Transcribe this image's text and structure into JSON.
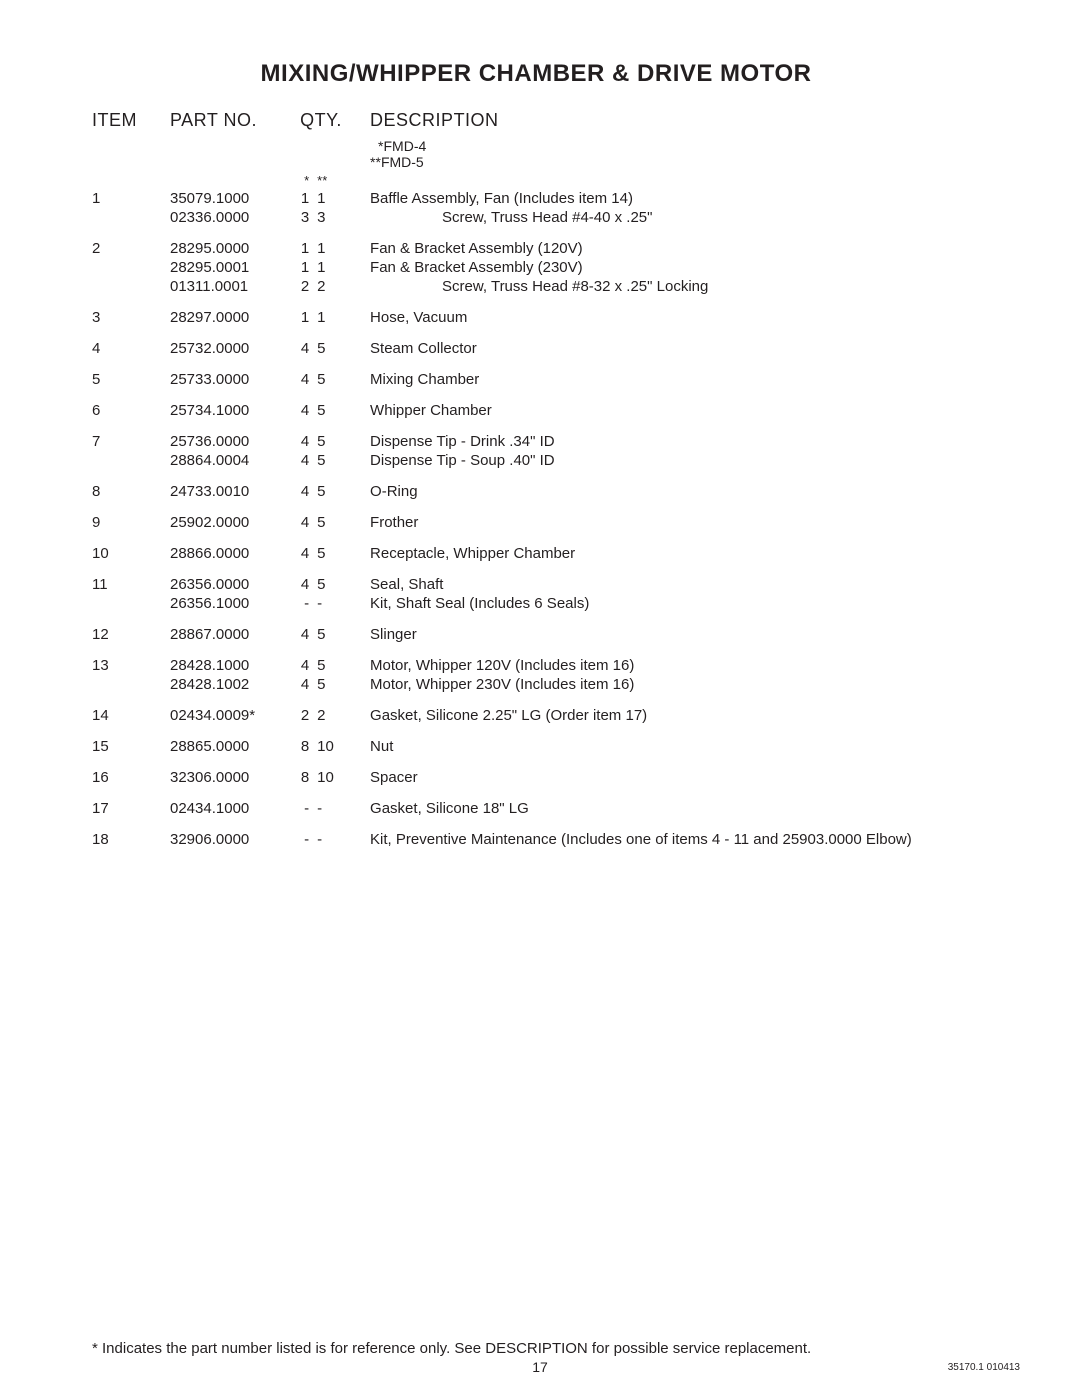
{
  "title": "MIXING/WHIPPER CHAMBER & DRIVE MOTOR",
  "headers": {
    "item": "ITEM",
    "part": "PART NO.",
    "qty": "QTY.",
    "desc": "DESCRIPTION"
  },
  "model_notes": {
    "line1": "*FMD-4",
    "line2": "**FMD-5"
  },
  "qty_stars": {
    "c1": "*",
    "c2": "**"
  },
  "rows": [
    {
      "item": "1",
      "sub": [
        {
          "part": "35079.1000",
          "q1": "1",
          "q2": "1",
          "desc": "Baffle Assembly, Fan (Includes item 14)"
        },
        {
          "part": "02336.0000",
          "q1": "3",
          "q2": "3",
          "desc": "Screw, Truss Head #4-40 x .25\"",
          "indent": true
        }
      ]
    },
    {
      "item": "2",
      "sub": [
        {
          "part": "28295.0000",
          "q1": "1",
          "q2": "1",
          "desc": "Fan & Bracket Assembly (120V)"
        },
        {
          "part": "28295.0001",
          "q1": "1",
          "q2": "1",
          "desc": "Fan & Bracket Assembly (230V)"
        },
        {
          "part": "01311.0001",
          "q1": "2",
          "q2": "2",
          "desc": "Screw, Truss Head #8-32 x .25\" Locking",
          "indent": true
        }
      ]
    },
    {
      "item": "3",
      "sub": [
        {
          "part": "28297.0000",
          "q1": "1",
          "q2": "1",
          "desc": "Hose, Vacuum"
        }
      ]
    },
    {
      "item": "4",
      "sub": [
        {
          "part": "25732.0000",
          "q1": "4",
          "q2": "5",
          "desc": "Steam Collector"
        }
      ]
    },
    {
      "item": "5",
      "sub": [
        {
          "part": "25733.0000",
          "q1": "4",
          "q2": "5",
          "desc": "Mixing Chamber"
        }
      ]
    },
    {
      "item": "6",
      "sub": [
        {
          "part": "25734.1000",
          "q1": "4",
          "q2": "5",
          "desc": "Whipper Chamber"
        }
      ]
    },
    {
      "item": "7",
      "sub": [
        {
          "part": "25736.0000",
          "q1": "4",
          "q2": "5",
          "desc": "Dispense Tip - Drink .34\" ID"
        },
        {
          "part": "28864.0004",
          "q1": "4",
          "q2": "5",
          "desc": "Dispense Tip - Soup .40\" ID"
        }
      ]
    },
    {
      "item": "8",
      "sub": [
        {
          "part": "24733.0010",
          "q1": "4",
          "q2": "5",
          "desc": "O-Ring"
        }
      ]
    },
    {
      "item": "9",
      "sub": [
        {
          "part": "25902.0000",
          "q1": "4",
          "q2": "5",
          "desc": "Frother"
        }
      ]
    },
    {
      "item": "10",
      "sub": [
        {
          "part": "28866.0000",
          "q1": "4",
          "q2": "5",
          "desc": "Receptacle, Whipper Chamber"
        }
      ]
    },
    {
      "item": "11",
      "sub": [
        {
          "part": "26356.0000",
          "q1": "4",
          "q2": "5",
          "desc": "Seal, Shaft"
        },
        {
          "part": "26356.1000",
          "q1": "-",
          "q2": "-",
          "desc": "Kit, Shaft Seal (Includes 6 Seals)"
        }
      ]
    },
    {
      "item": "12",
      "sub": [
        {
          "part": "28867.0000",
          "q1": "4",
          "q2": "5",
          "desc": "Slinger"
        }
      ]
    },
    {
      "item": "13",
      "sub": [
        {
          "part": "28428.1000",
          "q1": "4",
          "q2": "5",
          "desc": "Motor, Whipper 120V (Includes item 16)"
        },
        {
          "part": "28428.1002",
          "q1": "4",
          "q2": "5",
          "desc": "Motor, Whipper 230V (Includes item 16)"
        }
      ]
    },
    {
      "item": "14",
      "sub": [
        {
          "part": "02434.0009*",
          "q1": "2",
          "q2": "2",
          "desc": "Gasket, Silicone 2.25\" LG (Order item 17)"
        }
      ]
    },
    {
      "item": "15",
      "sub": [
        {
          "part": "28865.0000",
          "q1": "8",
          "q2": "10",
          "desc": "Nut"
        }
      ]
    },
    {
      "item": "16",
      "sub": [
        {
          "part": "32306.0000",
          "q1": "8",
          "q2": "10",
          "desc": "Spacer"
        }
      ]
    },
    {
      "item": "17",
      "sub": [
        {
          "part": "02434.1000",
          "q1": "-",
          "q2": "-",
          "desc": "Gasket, Silicone 18\" LG"
        }
      ]
    },
    {
      "item": "18",
      "sub": [
        {
          "part": "32906.0000",
          "q1": "-",
          "q2": "-",
          "desc": "Kit, Preventive Maintenance (Includes one of items 4 - 11 and 25903.0000 Elbow)"
        }
      ]
    }
  ],
  "footnote": "* Indicates the part number listed is for reference only. See DESCRIPTION for possible service replacement.",
  "page_number": "17",
  "doc_code": "35170.1 010413"
}
